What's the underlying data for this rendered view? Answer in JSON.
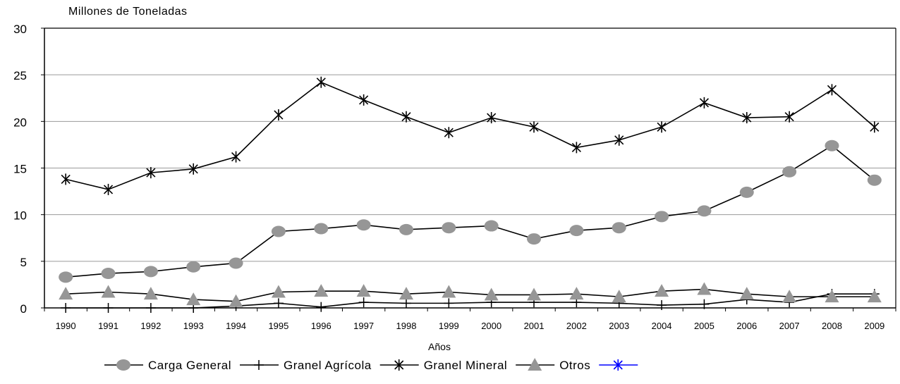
{
  "chart_data": {
    "type": "line",
    "title": "",
    "ylabel": "Millones de Toneladas",
    "xlabel": "Años",
    "ylim": [
      0,
      30
    ],
    "yticks": [
      0,
      5,
      10,
      15,
      20,
      25,
      30
    ],
    "grid": "horizontal",
    "legend_position": "bottom",
    "categories": [
      "1990",
      "1991",
      "1992",
      "1993",
      "1994",
      "1995",
      "1996",
      "1997",
      "1998",
      "1999",
      "2000",
      "2001",
      "2002",
      "2003",
      "2004",
      "2005",
      "2006",
      "2007",
      "2008",
      "2009"
    ],
    "series": [
      {
        "name": "Carga General",
        "marker": "circle",
        "color": "#000000",
        "marker_color": "#969696",
        "values": [
          3.3,
          3.7,
          3.9,
          4.4,
          4.8,
          8.2,
          8.5,
          8.9,
          8.4,
          8.6,
          8.8,
          7.4,
          8.3,
          8.6,
          9.8,
          10.4,
          12.4,
          14.6,
          17.4,
          13.7
        ]
      },
      {
        "name": "Granel Agrícola",
        "marker": "plus",
        "color": "#000000",
        "marker_color": "#000000",
        "values": [
          0.0,
          0.0,
          0.0,
          0.0,
          0.2,
          0.5,
          0.1,
          0.6,
          0.5,
          0.5,
          0.6,
          0.6,
          0.6,
          0.5,
          0.3,
          0.4,
          0.9,
          0.6,
          1.5,
          1.5
        ]
      },
      {
        "name": "Granel Mineral",
        "marker": "asterisk",
        "color": "#000000",
        "marker_color": "#000000",
        "values": [
          13.8,
          12.7,
          14.5,
          14.9,
          16.2,
          20.7,
          24.2,
          22.3,
          20.5,
          18.8,
          20.4,
          19.4,
          17.2,
          18.0,
          19.4,
          22.0,
          20.4,
          20.5,
          23.4,
          19.4
        ]
      },
      {
        "name": "Otros",
        "marker": "triangle",
        "color": "#000000",
        "marker_color": "#969696",
        "values": [
          1.5,
          1.7,
          1.5,
          0.9,
          0.7,
          1.7,
          1.8,
          1.8,
          1.5,
          1.7,
          1.4,
          1.4,
          1.5,
          1.2,
          1.8,
          2.0,
          1.5,
          1.2,
          1.2,
          1.2
        ]
      }
    ],
    "legend_extra": {
      "name": "",
      "marker": "asterisk",
      "color": "#0000FF"
    }
  }
}
